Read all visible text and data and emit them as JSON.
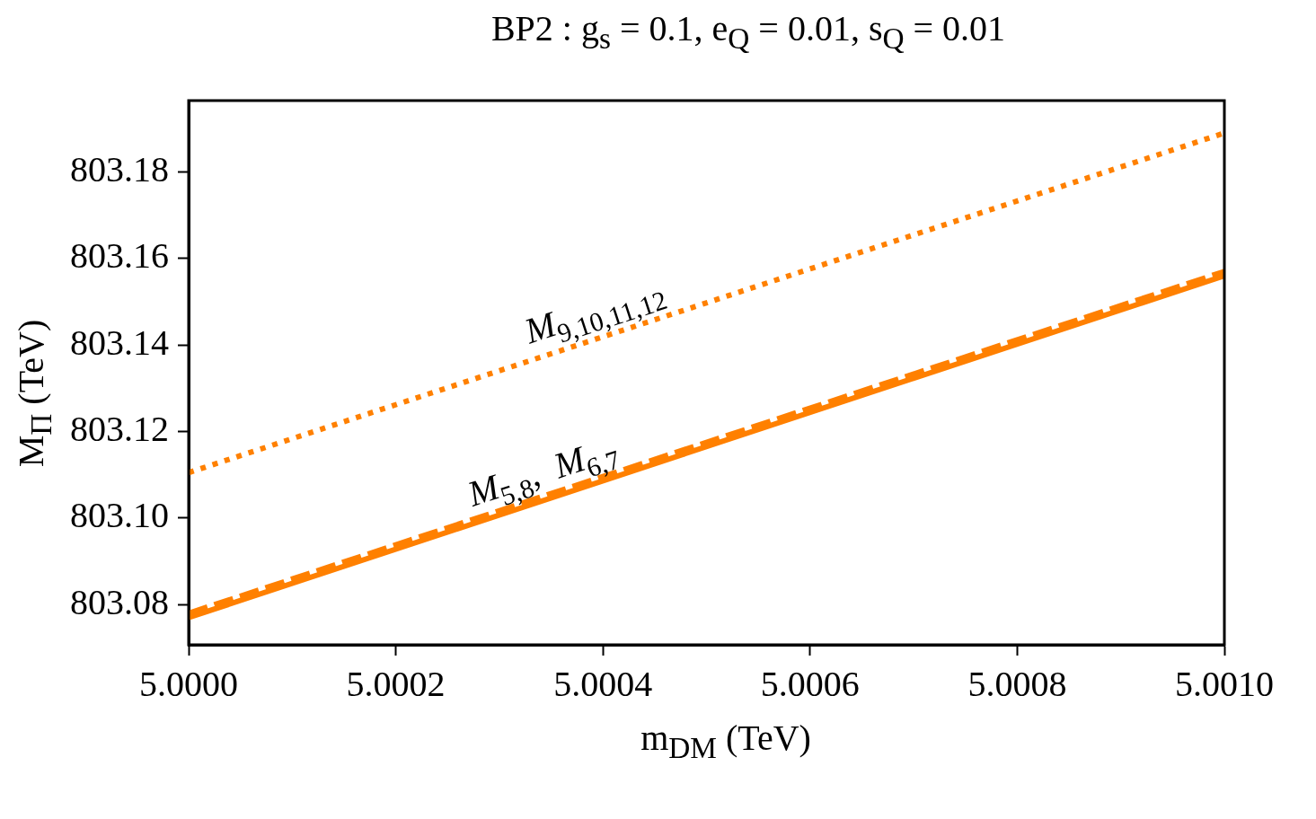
{
  "chart_data": {
    "type": "line",
    "title": "BP2 : g$_{s}$ = 0.1, e$_{Q}$ = 0.01, s$_{Q}$ = 0.01",
    "xlabel": "m$_{DM}$ (TeV)",
    "ylabel": "M$_{Π}$ (TeV)",
    "x": [
      5.0,
      5.001
    ],
    "series": [
      {
        "color": "#ff8000",
        "line_style": "dotted",
        "values": [
          803.1105,
          803.189
        ]
      },
      {
        "color": "#ff8000",
        "line_style": "solid",
        "values": [
          803.077,
          803.156
        ]
      },
      {
        "color": "#ff8000",
        "line_style": "dashed",
        "values": [
          803.078,
          803.157
        ]
      }
    ],
    "xlim": [
      5.0,
      5.001
    ],
    "ylim": [
      803.0707,
      803.1965
    ],
    "xticks": [
      {
        "value": 5.0,
        "label": "5.0000"
      },
      {
        "value": 5.0002,
        "label": "5.0002"
      },
      {
        "value": 5.0004,
        "label": "5.0004"
      },
      {
        "value": 5.0006,
        "label": "5.0006"
      },
      {
        "value": 5.0008,
        "label": "5.0008"
      },
      {
        "value": 5.001,
        "label": "5.0010"
      }
    ],
    "yticks": [
      {
        "value": 803.08,
        "label": "803.08"
      },
      {
        "value": 803.1,
        "label": "803.10"
      },
      {
        "value": 803.12,
        "label": "803.12"
      },
      {
        "value": 803.14,
        "label": "803.14"
      },
      {
        "value": 803.16,
        "label": "803.16"
      },
      {
        "value": 803.18,
        "label": "803.18"
      }
    ],
    "annotations": [
      "M$_{9,10,11,12}$",
      "M$_{5,8}$,  M$_{6,7}$"
    ],
    "grid": false,
    "legend": false,
    "marker": "none"
  }
}
